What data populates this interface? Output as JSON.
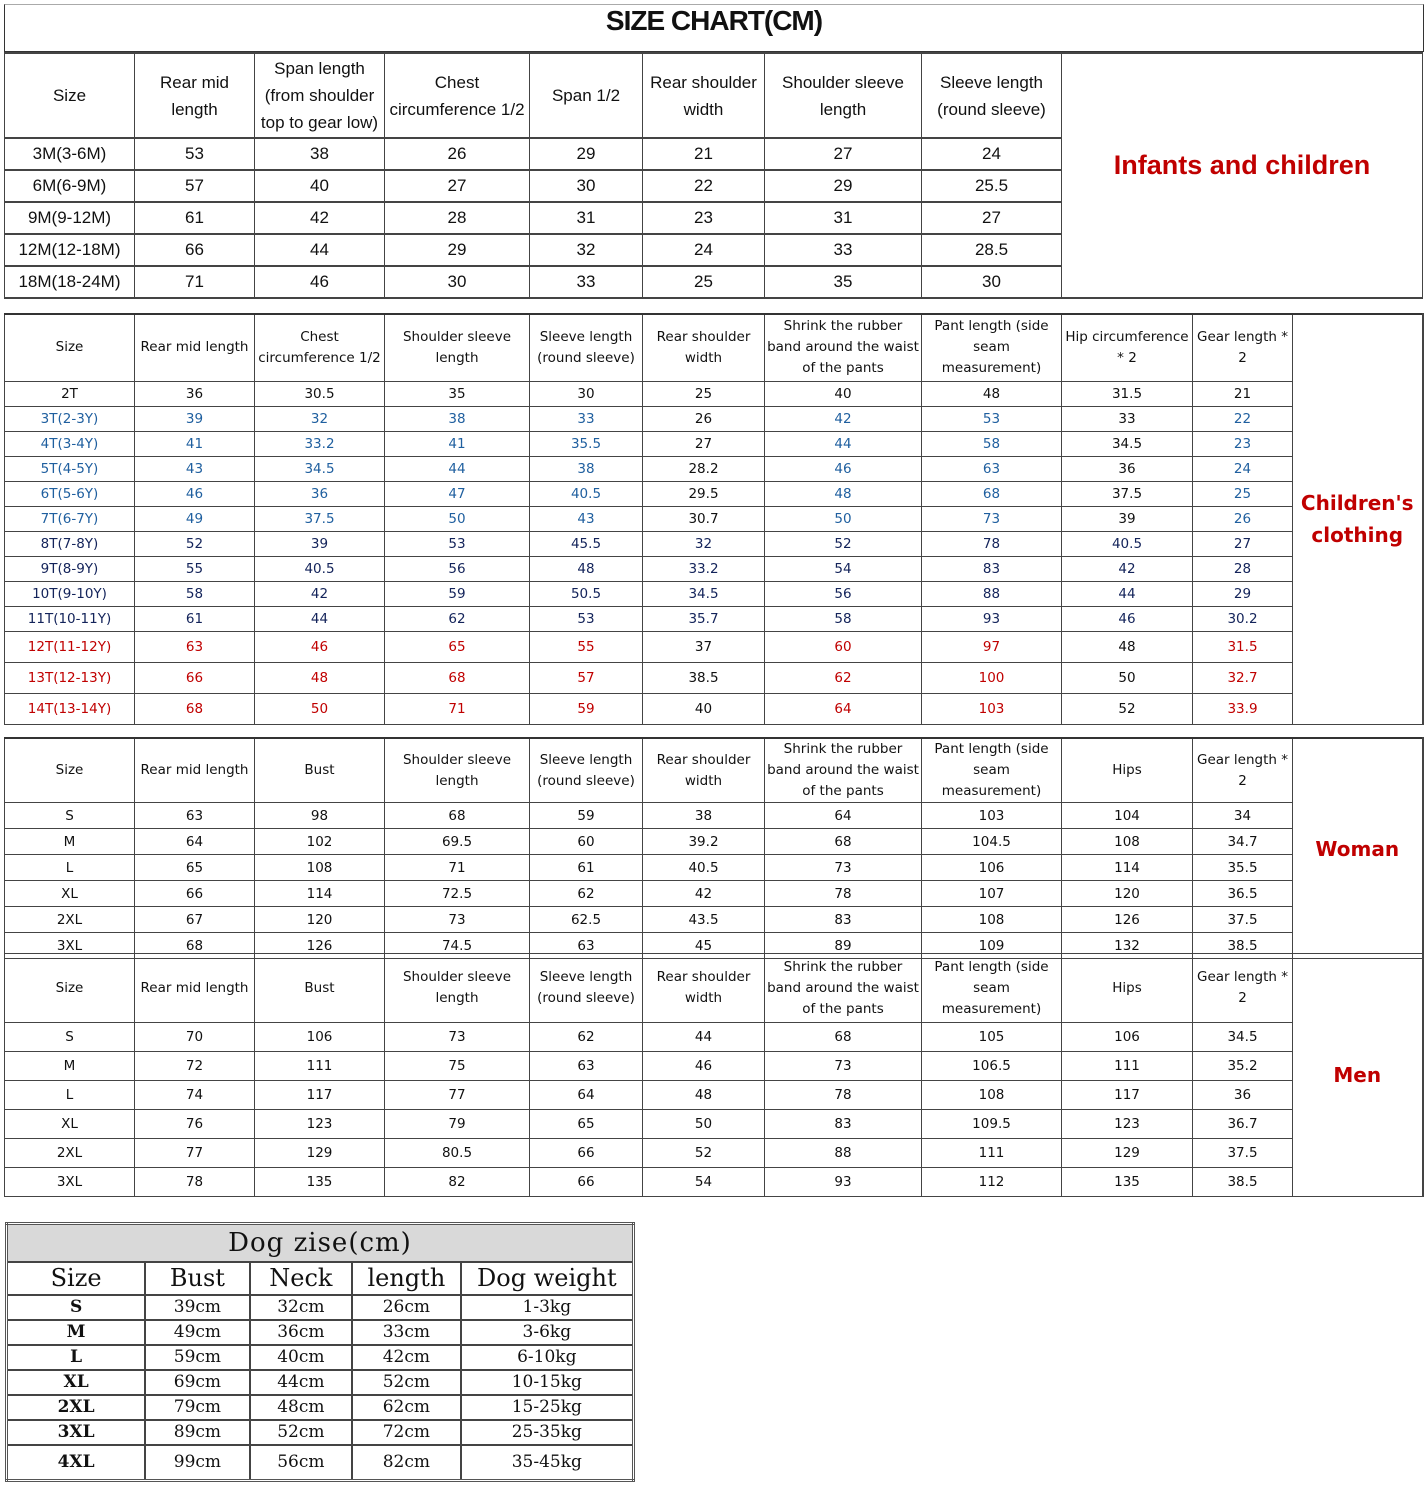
{
  "title": "SIZE CHART(CM)",
  "sections": [
    {
      "label": "Infants and children",
      "headers": [
        "Size",
        "Rear mid length",
        "Span length (from shoulder top to gear low)",
        "Chest circumference 1/2",
        "Span 1/2",
        "Rear shoulder width",
        "Shoulder sleeve length",
        "Sleeve length (round sleeve)"
      ],
      "rows": [
        [
          "3M(3-6M)",
          "53",
          "38",
          "26",
          "29",
          "21",
          "27",
          "24"
        ],
        [
          "6M(6-9M)",
          "57",
          "40",
          "27",
          "30",
          "22",
          "29",
          "25.5"
        ],
        [
          "9M(9-12M)",
          "61",
          "42",
          "28",
          "31",
          "23",
          "31",
          "27"
        ],
        [
          "12M(12-18M)",
          "66",
          "44",
          "29",
          "32",
          "24",
          "33",
          "28.5"
        ],
        [
          "18M(18-24M)",
          "71",
          "46",
          "30",
          "33",
          "25",
          "35",
          "30"
        ]
      ]
    },
    {
      "label": "Children's clothing",
      "headers": [
        "Size",
        "Rear mid length",
        "Chest circumference 1/2",
        "Shoulder sleeve length",
        "Sleeve length (round sleeve)",
        "Rear shoulder width",
        "Shrink the rubber band around the waist of the pants",
        "Pant length (side seam measurement)",
        "Hip circumference * 2",
        "Gear length * 2"
      ],
      "rows": [
        [
          "2T",
          "36",
          "30.5",
          "35",
          "30",
          "25",
          "40",
          "48",
          "31.5",
          "21"
        ],
        [
          "3T(2-3Y)",
          "39",
          "32",
          "38",
          "33",
          "26",
          "42",
          "53",
          "33",
          "22"
        ],
        [
          "4T(3-4Y)",
          "41",
          "33.2",
          "41",
          "35.5",
          "27",
          "44",
          "58",
          "34.5",
          "23"
        ],
        [
          "5T(4-5Y)",
          "43",
          "34.5",
          "44",
          "38",
          "28.2",
          "46",
          "63",
          "36",
          "24"
        ],
        [
          "6T(5-6Y)",
          "46",
          "36",
          "47",
          "40.5",
          "29.5",
          "48",
          "68",
          "37.5",
          "25"
        ],
        [
          "7T(6-7Y)",
          "49",
          "37.5",
          "50",
          "43",
          "30.7",
          "50",
          "73",
          "39",
          "26"
        ],
        [
          "8T(7-8Y)",
          "52",
          "39",
          "53",
          "45.5",
          "32",
          "52",
          "78",
          "40.5",
          "27"
        ],
        [
          "9T(8-9Y)",
          "55",
          "40.5",
          "56",
          "48",
          "33.2",
          "54",
          "83",
          "42",
          "28"
        ],
        [
          "10T(9-10Y)",
          "58",
          "42",
          "59",
          "50.5",
          "34.5",
          "56",
          "88",
          "44",
          "29"
        ],
        [
          "11T(10-11Y)",
          "61",
          "44",
          "62",
          "53",
          "35.7",
          "58",
          "93",
          "46",
          "30.2"
        ],
        [
          "12T(11-12Y)",
          "63",
          "46",
          "65",
          "55",
          "37",
          "60",
          "97",
          "48",
          "31.5"
        ],
        [
          "13T(12-13Y)",
          "66",
          "48",
          "68",
          "57",
          "38.5",
          "62",
          "100",
          "50",
          "32.7"
        ],
        [
          "14T(13-14Y)",
          "68",
          "50",
          "71",
          "59",
          "40",
          "64",
          "103",
          "52",
          "33.9"
        ]
      ]
    },
    {
      "label": "Woman",
      "headers": [
        "Size",
        "Rear mid length",
        "Bust",
        "Shoulder sleeve length",
        "Sleeve length (round sleeve)",
        "Rear shoulder width",
        "Shrink the rubber band around the waist of the pants",
        "Pant length (side seam measurement)",
        "Hips",
        "Gear length * 2"
      ],
      "rows": [
        [
          "S",
          "63",
          "98",
          "68",
          "59",
          "38",
          "64",
          "103",
          "104",
          "34"
        ],
        [
          "M",
          "64",
          "102",
          "69.5",
          "60",
          "39.2",
          "68",
          "104.5",
          "108",
          "34.7"
        ],
        [
          "L",
          "65",
          "108",
          "71",
          "61",
          "40.5",
          "73",
          "106",
          "114",
          "35.5"
        ],
        [
          "XL",
          "66",
          "114",
          "72.5",
          "62",
          "42",
          "78",
          "107",
          "120",
          "36.5"
        ],
        [
          "2XL",
          "67",
          "120",
          "73",
          "62.5",
          "43.5",
          "83",
          "108",
          "126",
          "37.5"
        ],
        [
          "3XL",
          "68",
          "126",
          "74.5",
          "63",
          "45",
          "89",
          "109",
          "132",
          "38.5"
        ]
      ]
    },
    {
      "label": "Men",
      "headers": [
        "Size",
        "Rear mid length",
        "Bust",
        "Shoulder sleeve length",
        "Sleeve length (round sleeve)",
        "Rear shoulder width",
        "Shrink the rubber band around the waist of the pants",
        "Pant length (side seam measurement)",
        "Hips",
        "Gear length * 2"
      ],
      "rows": [
        [
          "S",
          "70",
          "106",
          "73",
          "62",
          "44",
          "68",
          "105",
          "106",
          "34.5"
        ],
        [
          "M",
          "72",
          "111",
          "75",
          "63",
          "46",
          "73",
          "106.5",
          "111",
          "35.2"
        ],
        [
          "L",
          "74",
          "117",
          "77",
          "64",
          "48",
          "78",
          "108",
          "117",
          "36"
        ],
        [
          "XL",
          "76",
          "123",
          "79",
          "65",
          "50",
          "83",
          "109.5",
          "123",
          "36.7"
        ],
        [
          "2XL",
          "77",
          "129",
          "80.5",
          "66",
          "52",
          "88",
          "111",
          "129",
          "37.5"
        ],
        [
          "3XL",
          "78",
          "135",
          "82",
          "66",
          "54",
          "93",
          "112",
          "135",
          "38.5"
        ]
      ]
    }
  ],
  "dog": {
    "title": "Dog zise(cm)",
    "headers": [
      "Size",
      "Bust",
      "Neck",
      "length",
      "Dog weight"
    ],
    "rows": [
      [
        "S",
        "39cm",
        "32cm",
        "26cm",
        "1-3kg"
      ],
      [
        "M",
        "49cm",
        "36cm",
        "33cm",
        "3-6kg"
      ],
      [
        "L",
        "59cm",
        "40cm",
        "42cm",
        "6-10kg"
      ],
      [
        "XL",
        "69cm",
        "44cm",
        "52cm",
        "10-15kg"
      ],
      [
        "2XL",
        "79cm",
        "48cm",
        "62cm",
        "15-25kg"
      ],
      [
        "3XL",
        "89cm",
        "52cm",
        "72cm",
        "25-35kg"
      ],
      [
        "4XL",
        "99cm",
        "56cm",
        "82cm",
        "35-45kg"
      ]
    ]
  }
}
